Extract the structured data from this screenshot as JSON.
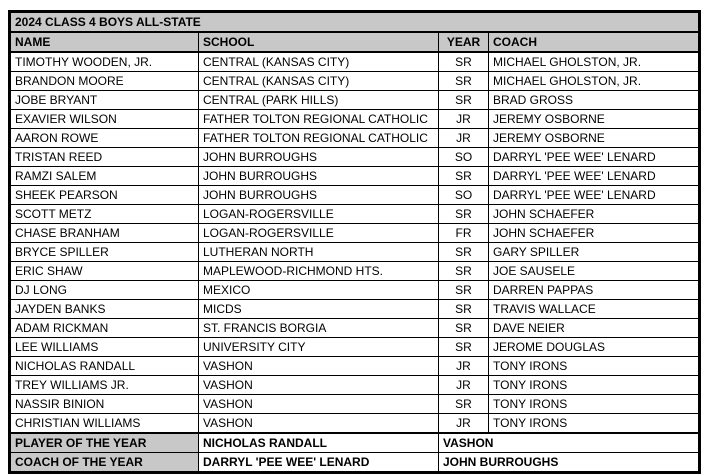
{
  "colors": {
    "header_bg": "#c8c8c8",
    "border": "#000000",
    "page_bg": "#ffffff"
  },
  "table": {
    "title": "2024 CLASS 4 BOYS ALL-STATE",
    "columns": [
      "NAME",
      "SCHOOL",
      "YEAR",
      "COACH"
    ],
    "rows": [
      {
        "name": "TIMOTHY WOODEN, JR.",
        "school": "CENTRAL (KANSAS CITY)",
        "year": "SR",
        "coach": "MICHAEL GHOLSTON, JR."
      },
      {
        "name": "BRANDON MOORE",
        "school": "CENTRAL (KANSAS CITY)",
        "year": "SR",
        "coach": "MICHAEL GHOLSTON, JR."
      },
      {
        "name": "JOBE BRYANT",
        "school": "CENTRAL (PARK HILLS)",
        "year": "SR",
        "coach": "BRAD GROSS"
      },
      {
        "name": "EXAVIER WILSON",
        "school": "FATHER TOLTON REGIONAL CATHOLIC",
        "year": "JR",
        "coach": "JEREMY OSBORNE"
      },
      {
        "name": "AARON ROWE",
        "school": "FATHER TOLTON REGIONAL CATHOLIC",
        "year": "JR",
        "coach": "JEREMY OSBORNE"
      },
      {
        "name": "TRISTAN REED",
        "school": "JOHN BURROUGHS",
        "year": "SO",
        "coach": "DARRYL 'PEE WEE' LENARD"
      },
      {
        "name": "RAMZI SALEM",
        "school": "JOHN BURROUGHS",
        "year": "SR",
        "coach": "DARRYL 'PEE WEE' LENARD"
      },
      {
        "name": "SHEEK PEARSON",
        "school": "JOHN BURROUGHS",
        "year": "SO",
        "coach": "DARRYL 'PEE WEE' LENARD"
      },
      {
        "name": "SCOTT METZ",
        "school": "LOGAN-ROGERSVILLE",
        "year": "SR",
        "coach": "JOHN SCHAEFER"
      },
      {
        "name": "CHASE BRANHAM",
        "school": "LOGAN-ROGERSVILLE",
        "year": "FR",
        "coach": "JOHN SCHAEFER"
      },
      {
        "name": "BRYCE SPILLER",
        "school": "LUTHERAN NORTH",
        "year": "SR",
        "coach": "GARY SPILLER"
      },
      {
        "name": "ERIC SHAW",
        "school": "MAPLEWOOD-RICHMOND HTS.",
        "year": "SR",
        "coach": "JOE SAUSELE"
      },
      {
        "name": "DJ LONG",
        "school": "MEXICO",
        "year": "SR",
        "coach": "DARREN PAPPAS"
      },
      {
        "name": "JAYDEN BANKS",
        "school": "MICDS",
        "year": "SR",
        "coach": "TRAVIS WALLACE"
      },
      {
        "name": "ADAM RICKMAN",
        "school": "ST. FRANCIS BORGIA",
        "year": "SR",
        "coach": "DAVE NEIER"
      },
      {
        "name": "LEE WILLIAMS",
        "school": "UNIVERSITY CITY",
        "year": "SR",
        "coach": "JEROME DOUGLAS"
      },
      {
        "name": "NICHOLAS RANDALL",
        "school": "VASHON",
        "year": "JR",
        "coach": "TONY IRONS"
      },
      {
        "name": "TREY WILLIAMS JR.",
        "school": "VASHON",
        "year": "JR",
        "coach": "TONY IRONS"
      },
      {
        "name": "NASSIR BINION",
        "school": "VASHON",
        "year": "SR",
        "coach": "TONY IRONS"
      },
      {
        "name": "CHRISTIAN WILLIAMS",
        "school": "VASHON",
        "year": "JR",
        "coach": "TONY IRONS"
      }
    ],
    "footer": {
      "player_of_year_label": "PLAYER OF THE YEAR",
      "player_of_year_name": "NICHOLAS RANDALL",
      "player_of_year_school": "VASHON",
      "coach_of_year_label": "COACH OF THE YEAR",
      "coach_of_year_name": "DARRYL 'PEE WEE' LENARD",
      "coach_of_year_school": "JOHN BURROUGHS"
    }
  }
}
